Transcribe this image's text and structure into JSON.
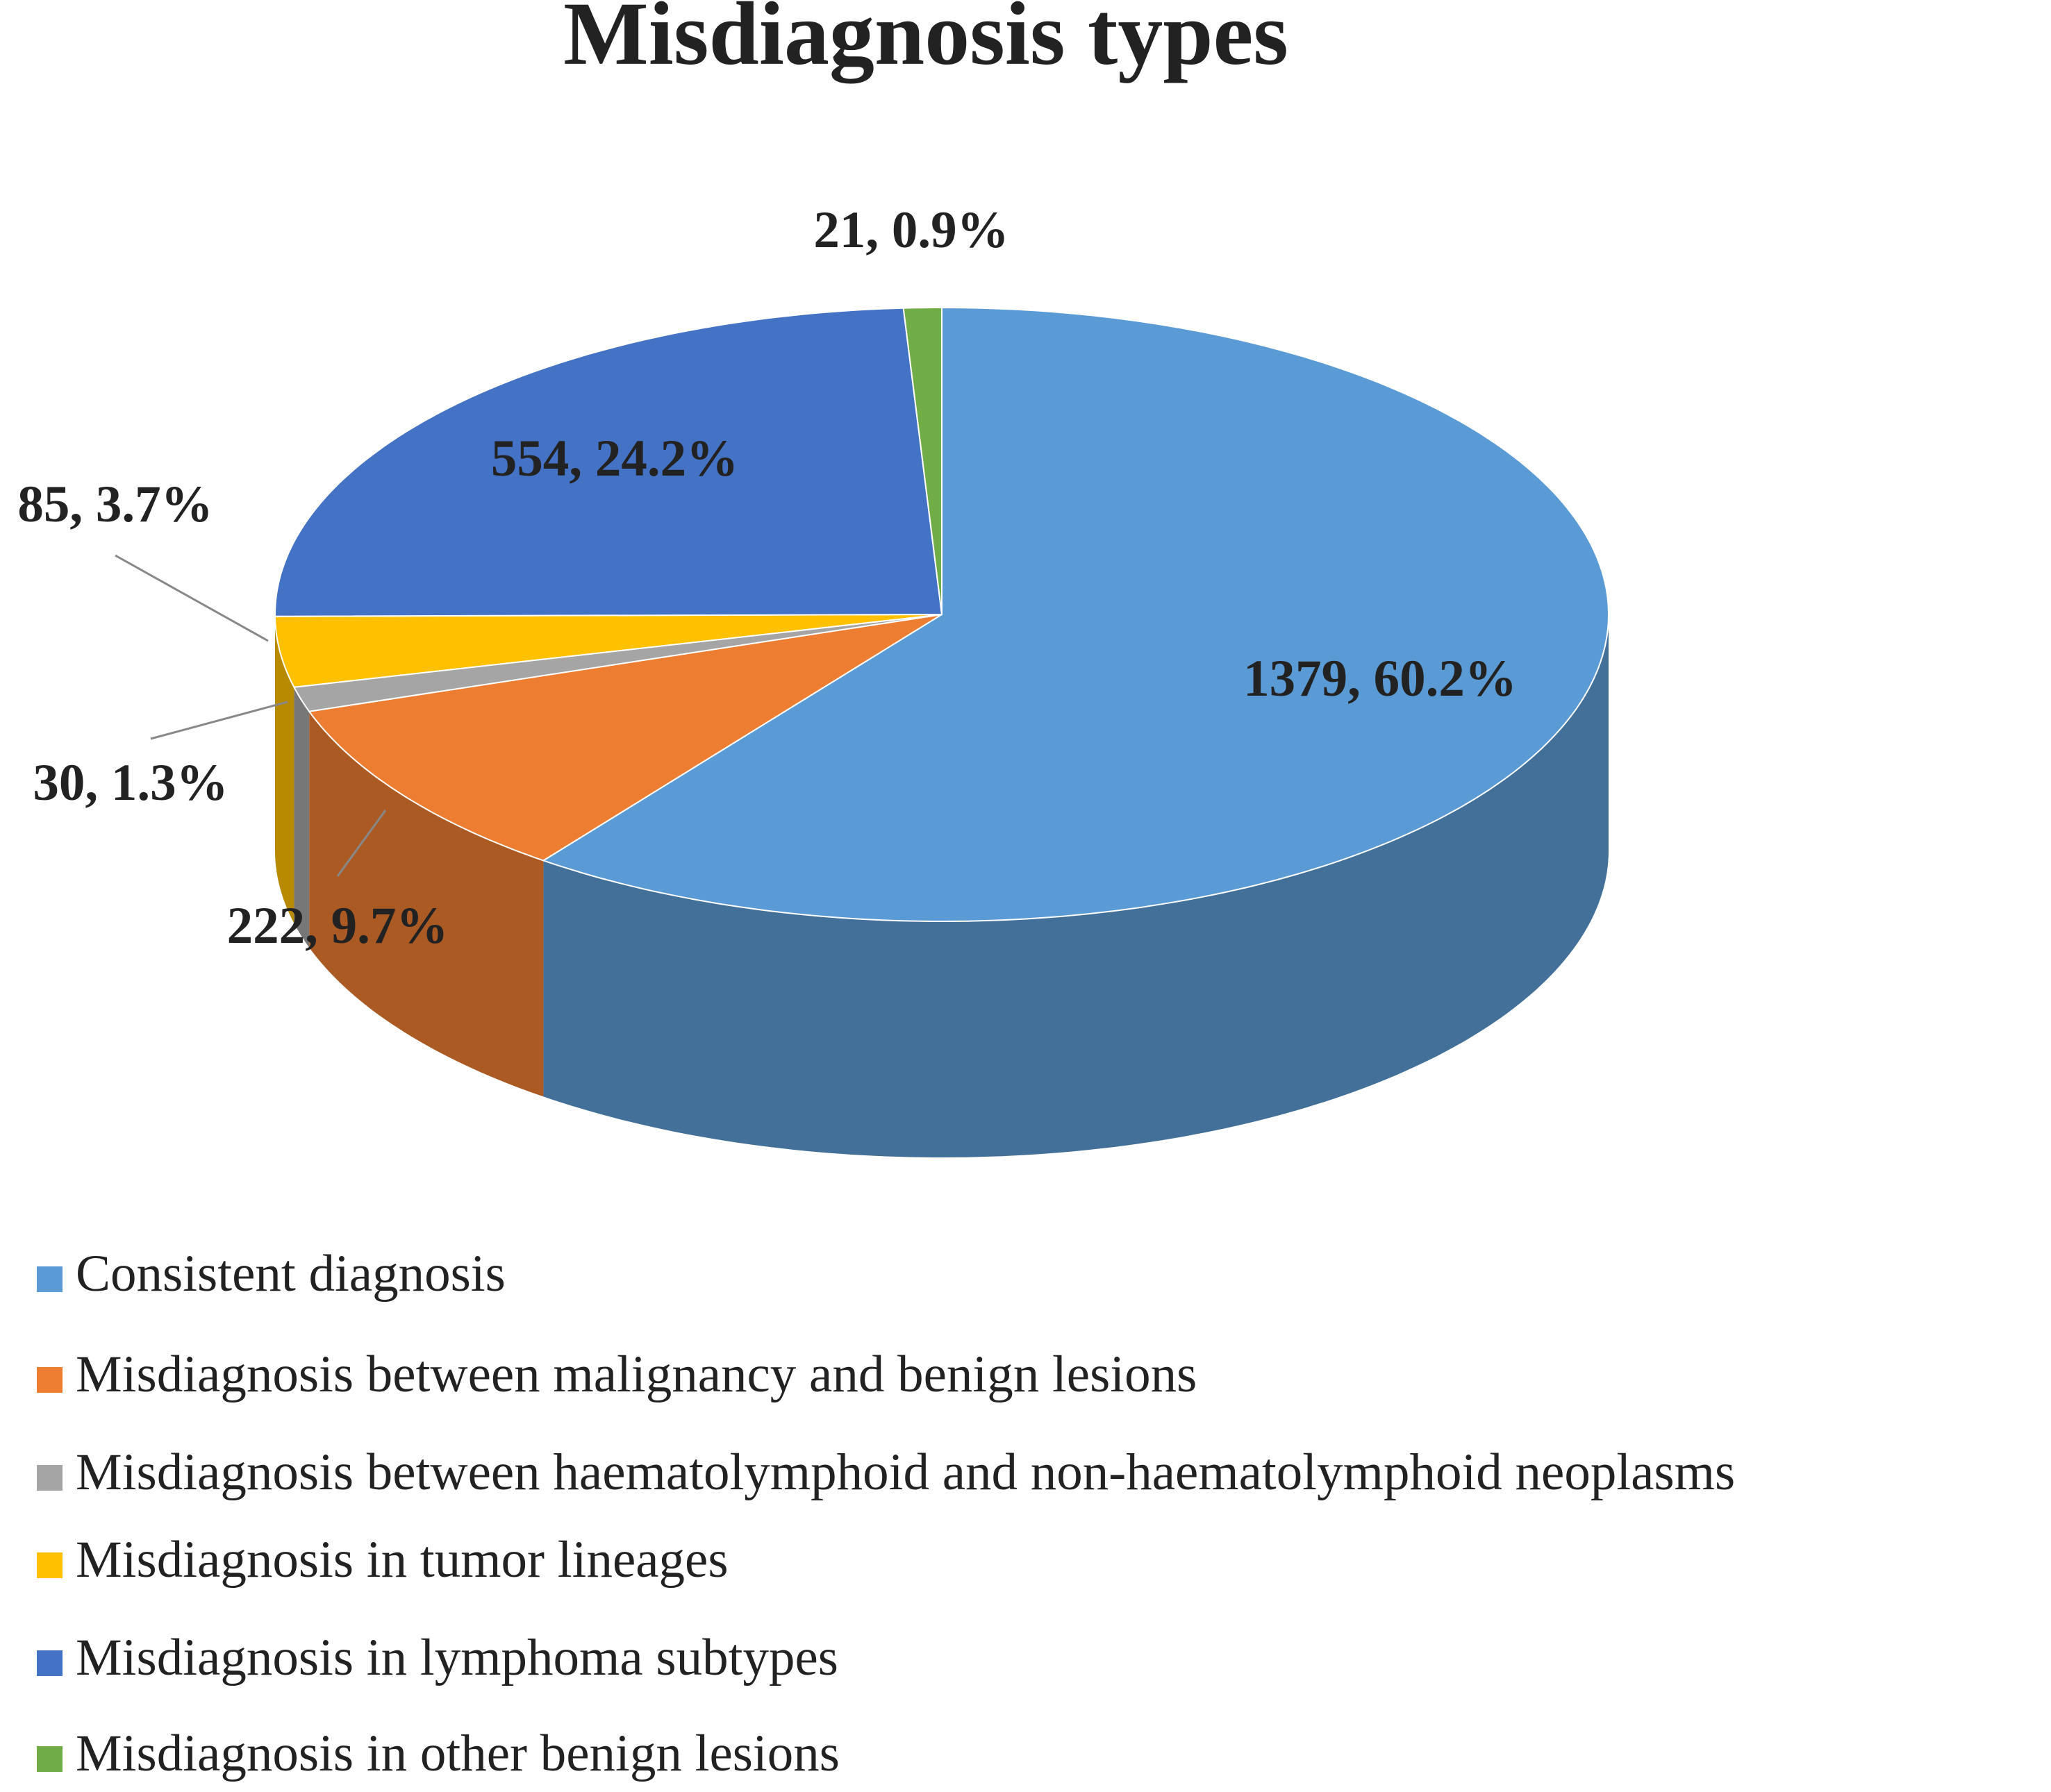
{
  "chart_data": {
    "type": "pie",
    "title": "Misdiagnosis types",
    "categories": [
      "Consistent diagnosis",
      "Misdiagnosis between malignancy and benign lesions",
      "Misdiagnosis between haematolymphoid and non-haematolymphoid neoplasms",
      "Misdiagnosis in tumor lineages",
      "Misdiagnosis in lymphoma subtypes",
      "Misdiagnosis in other benign lesions"
    ],
    "values": [
      1379,
      222,
      30,
      85,
      554,
      21
    ],
    "value_labels": [
      "1379, 60.2%",
      "222, 9.7%",
      "30, 1.3%",
      "85, 3.7%",
      "554, 24.2%",
      "21, 0.9%"
    ],
    "colors": [
      "#5b9bd5",
      "#ed7d31",
      "#a5a5a5",
      "#ffc000",
      "#4472c4",
      "#70ad47"
    ]
  }
}
